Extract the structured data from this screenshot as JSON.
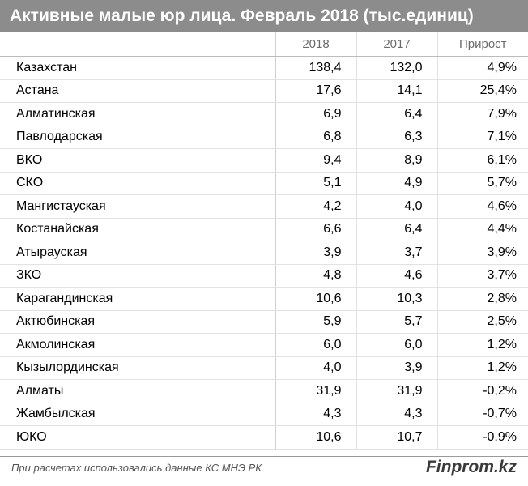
{
  "chart_data": {
    "type": "table",
    "title": "Активные малые юр лица. Февраль 2018 (тыс.единиц)",
    "columns": [
      "",
      "2018",
      "2017",
      "Прирост"
    ],
    "rows": [
      {
        "name": "Казахстан",
        "v2018": "138,4",
        "v2017": "132,0",
        "growth": "4,9%"
      },
      {
        "name": "Астана",
        "v2018": "17,6",
        "v2017": "14,1",
        "growth": "25,4%"
      },
      {
        "name": "Алматинская",
        "v2018": "6,9",
        "v2017": "6,4",
        "growth": "7,9%"
      },
      {
        "name": "Павлодарская",
        "v2018": "6,8",
        "v2017": "6,3",
        "growth": "7,1%"
      },
      {
        "name": "ВКО",
        "v2018": "9,4",
        "v2017": "8,9",
        "growth": "6,1%"
      },
      {
        "name": "СКО",
        "v2018": "5,1",
        "v2017": "4,9",
        "growth": "5,7%"
      },
      {
        "name": "Мангистауская",
        "v2018": "4,2",
        "v2017": "4,0",
        "growth": "4,6%"
      },
      {
        "name": "Костанайская",
        "v2018": "6,6",
        "v2017": "6,4",
        "growth": "4,4%"
      },
      {
        "name": "Атырауская",
        "v2018": "3,9",
        "v2017": "3,7",
        "growth": "3,9%"
      },
      {
        "name": "ЗКО",
        "v2018": "4,8",
        "v2017": "4,6",
        "growth": "3,7%"
      },
      {
        "name": "Карагандинская",
        "v2018": "10,6",
        "v2017": "10,3",
        "growth": "2,8%"
      },
      {
        "name": "Актюбинская",
        "v2018": "5,9",
        "v2017": "5,7",
        "growth": "2,5%"
      },
      {
        "name": "Акмолинская",
        "v2018": "6,0",
        "v2017": "6,0",
        "growth": "1,2%"
      },
      {
        "name": "Кызылординская",
        "v2018": "4,0",
        "v2017": "3,9",
        "growth": "1,2%"
      },
      {
        "name": "Алматы",
        "v2018": "31,9",
        "v2017": "31,9",
        "growth": "-0,2%"
      },
      {
        "name": "Жамбылская",
        "v2018": "4,3",
        "v2017": "4,3",
        "growth": "-0,7%"
      },
      {
        "name": "ЮКО",
        "v2018": "10,6",
        "v2017": "10,7",
        "growth": "-0,9%"
      }
    ]
  },
  "footer": {
    "note": "При расчетах использовались данные КС МНЭ РК",
    "brand": "Finprom.kz"
  },
  "colors": {
    "title_bg": "#8c8c8c",
    "title_text": "#ffffff"
  }
}
